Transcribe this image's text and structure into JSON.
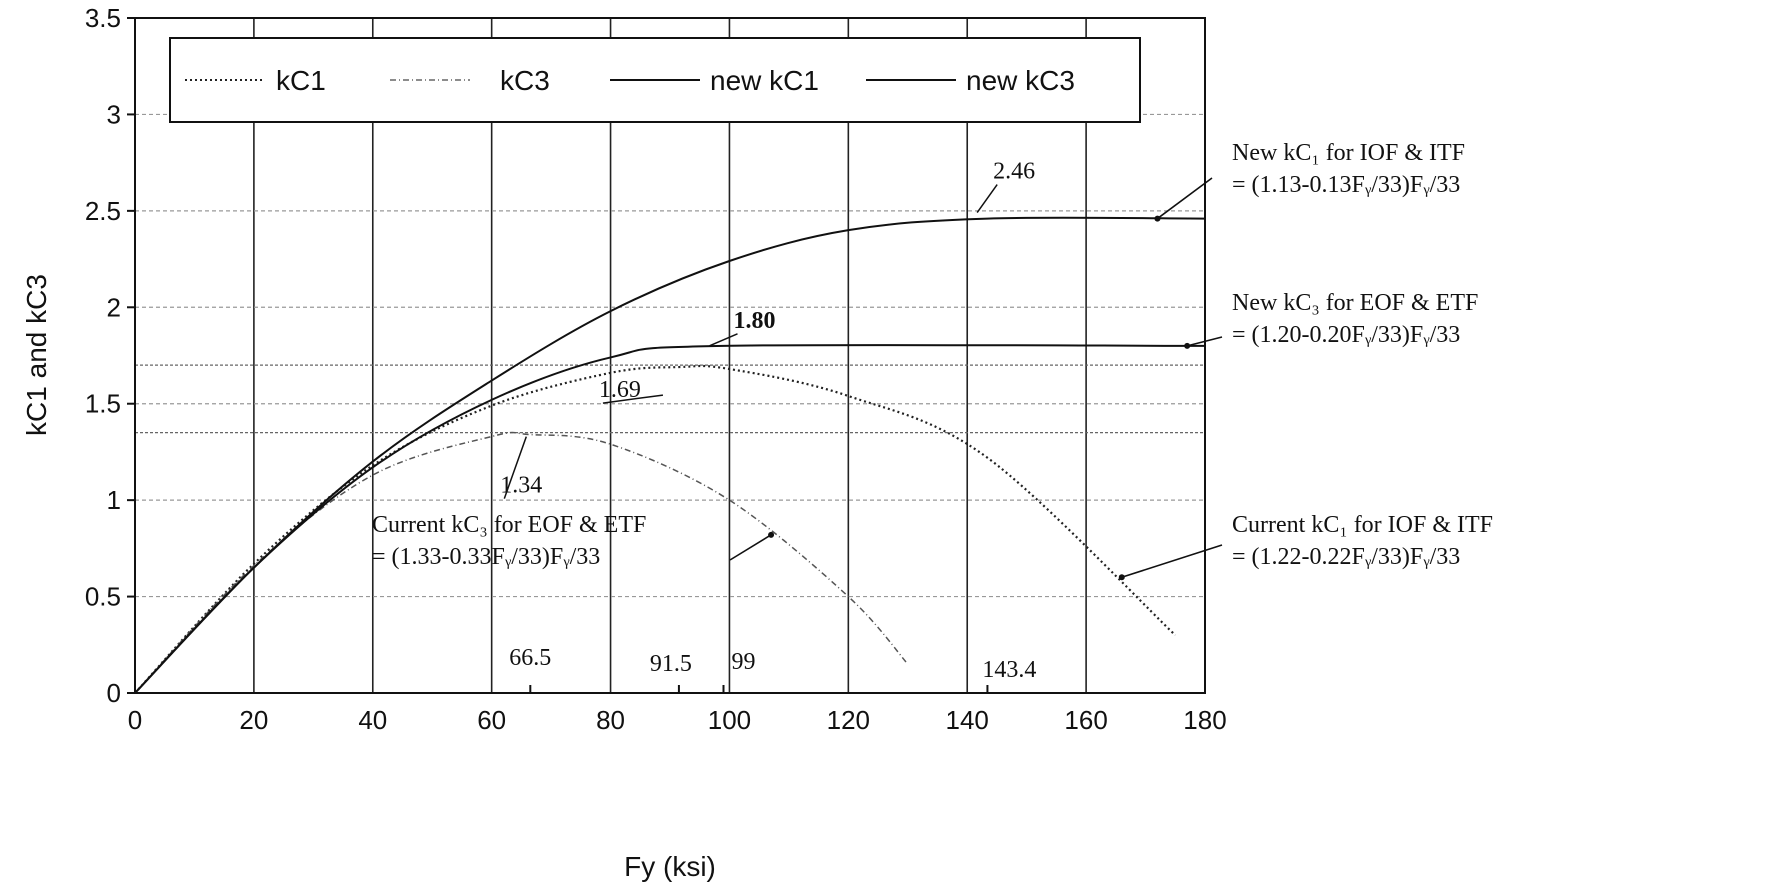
{
  "chart_data": {
    "type": "line",
    "title": "",
    "xlabel": "Fy (ksi)",
    "ylabel": "kC1 and kC3",
    "xlim": [
      0,
      180
    ],
    "ylim": [
      0,
      3.5
    ],
    "xticks": [
      0,
      20,
      40,
      60,
      80,
      100,
      120,
      140,
      160,
      180
    ],
    "yticks": [
      0,
      0.5,
      1,
      1.5,
      2,
      2.5,
      3,
      3.5
    ],
    "xtick_labels": [
      "0",
      "20",
      "40",
      "60",
      "80",
      "100",
      "120",
      "140",
      "160",
      "180"
    ],
    "ytick_labels": [
      "0",
      "0.5",
      "1",
      "1.5",
      "2",
      "2.5",
      "3",
      "3.5"
    ],
    "grid": true,
    "legend_position": "top-left",
    "series": [
      {
        "name": "kC1",
        "style": "dotted",
        "color": "#222222",
        "x": [
          0,
          20,
          40,
          60,
          80,
          91.5,
          100,
          120,
          143.4,
          175
        ],
        "y": [
          0,
          0.67,
          1.18,
          1.49,
          1.66,
          1.69,
          1.68,
          1.54,
          1.22,
          0.3
        ]
      },
      {
        "name": "kC3",
        "style": "dotted-light",
        "color": "#555555",
        "x": [
          0,
          20,
          40,
          60,
          66.5,
          80,
          100,
          120,
          130
        ],
        "y": [
          0,
          0.66,
          1.13,
          1.33,
          1.34,
          1.29,
          1.0,
          0.5,
          0.15
        ]
      },
      {
        "name": "new kC1",
        "style": "solid",
        "color": "#111111",
        "x": [
          0,
          20,
          40,
          60,
          80,
          100,
          120,
          143.4,
          180
        ],
        "y": [
          0,
          0.65,
          1.2,
          1.62,
          1.98,
          2.24,
          2.4,
          2.46,
          2.46
        ]
      },
      {
        "name": "new kC3",
        "style": "solid",
        "color": "#111111",
        "x": [
          0,
          20,
          40,
          60,
          80,
          99,
          180
        ],
        "y": [
          0,
          0.65,
          1.17,
          1.52,
          1.74,
          1.8,
          1.8
        ]
      }
    ],
    "baseline_dashed_y": [
      1.35,
      1.7
    ],
    "value_labels": [
      {
        "text": "2.46",
        "x": 141,
        "y": 2.46
      },
      {
        "text": "1.80",
        "x": 99,
        "y": 1.8
      },
      {
        "text": "1.69",
        "x": 91.5,
        "y": 1.69
      },
      {
        "text": "1.34",
        "x": 66.5,
        "y": 1.34
      }
    ],
    "x_markers": [
      {
        "text": "66.5",
        "x": 66.5
      },
      {
        "text": "91.5",
        "x": 91.5
      },
      {
        "text": "99",
        "x": 99
      },
      {
        "text": "143.4",
        "x": 143.4
      }
    ],
    "annotations": [
      {
        "line1": "New kC₁ for IOF & ITF",
        "line2": "= (1.13-0.13Fᵧ/33)Fᵧ/33",
        "target_x": 172,
        "target_y": 2.46
      },
      {
        "line1": "New kC₃ for EOF & ETF",
        "line2": "= (1.20-0.20Fᵧ/33)Fᵧ/33",
        "target_x": 177,
        "target_y": 1.8
      },
      {
        "line1": "Current kC₃ for EOF & ETF",
        "line2": "= (1.33-0.33Fᵧ/33)Fᵧ/33",
        "target_x": 107,
        "target_y": 0.82
      },
      {
        "line1": "Current kC₁ for IOF & ITF",
        "line2": "= (1.22-0.22Fᵧ/33)Fᵧ/33",
        "target_x": 166,
        "target_y": 0.6
      }
    ]
  }
}
